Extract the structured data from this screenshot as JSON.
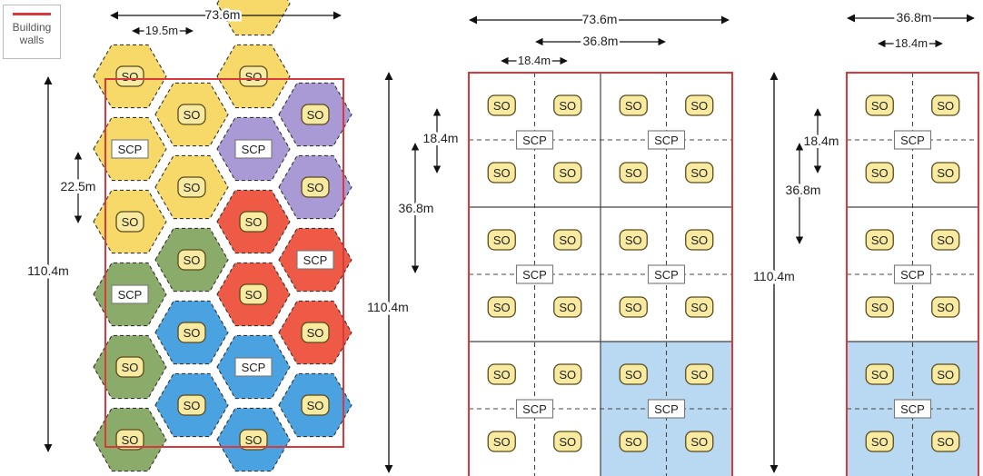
{
  "legend": {
    "label_line1": "Building",
    "label_line2": "walls",
    "wall_color": "#d9383d"
  },
  "labels": {
    "so": "SO",
    "scp": "SCP"
  },
  "colors": {
    "yellow": "#f7d96a",
    "purple": "#a99ad6",
    "red": "#ee5a45",
    "green": "#8bab6a",
    "blue": "#4aa3e0",
    "light_blue": "#b9d9f2",
    "badge_fill": "#f8eaa0",
    "badge_stroke": "#5a4a1a"
  },
  "diagram1": {
    "width_label": "73.6m",
    "spacing_label": "19.5m",
    "cell_label": "22.5m",
    "height_label": "110.4m",
    "right_height_label": "110.4m",
    "hexagons": [
      {
        "col": 0,
        "row": 0,
        "color": "yellow",
        "label": "SO"
      },
      {
        "col": 0,
        "row": 1,
        "color": "yellow",
        "label": "SCP"
      },
      {
        "col": 0,
        "row": 2,
        "color": "yellow",
        "label": "SO"
      },
      {
        "col": 0,
        "row": 3,
        "color": "green",
        "label": "SCP"
      },
      {
        "col": 0,
        "row": 4,
        "color": "green",
        "label": "SO"
      },
      {
        "col": 0,
        "row": 5,
        "color": "green",
        "label": "SO"
      },
      {
        "col": 1,
        "row": 0,
        "color": "yellow",
        "label": "SO"
      },
      {
        "col": 1,
        "row": 1,
        "color": "yellow",
        "label": "SO"
      },
      {
        "col": 1,
        "row": 2,
        "color": "green",
        "label": "SO"
      },
      {
        "col": 1,
        "row": 3,
        "color": "blue",
        "label": "SO"
      },
      {
        "col": 1,
        "row": 4,
        "color": "blue",
        "label": "SO"
      },
      {
        "col": 2,
        "row": -1,
        "color": "yellow",
        "label": ""
      },
      {
        "col": 2,
        "row": 0,
        "color": "yellow",
        "label": "SO"
      },
      {
        "col": 2,
        "row": 1,
        "color": "purple",
        "label": "SCP"
      },
      {
        "col": 2,
        "row": 2,
        "color": "red",
        "label": "SO"
      },
      {
        "col": 2,
        "row": 3,
        "color": "red",
        "label": "SO"
      },
      {
        "col": 2,
        "row": 4,
        "color": "blue",
        "label": "SCP"
      },
      {
        "col": 2,
        "row": 5,
        "color": "blue",
        "label": "SO"
      },
      {
        "col": 3,
        "row": 0,
        "color": "purple",
        "label": "SO"
      },
      {
        "col": 3,
        "row": 1,
        "color": "purple",
        "label": "SO"
      },
      {
        "col": 3,
        "row": 2,
        "color": "red",
        "label": "SCP"
      },
      {
        "col": 3,
        "row": 3,
        "color": "red",
        "label": "SO"
      },
      {
        "col": 3,
        "row": 4,
        "color": "blue",
        "label": "SO"
      }
    ]
  },
  "diagram2": {
    "width_label": "73.6m",
    "half_label": "36.8m",
    "quarter_label": "18.4m",
    "cell_label": "18.4m",
    "block_label": "36.8m",
    "height_label": "110.4m",
    "blocks": [
      {
        "row": 0,
        "col": 0,
        "fill": "white"
      },
      {
        "row": 0,
        "col": 1,
        "fill": "white"
      },
      {
        "row": 1,
        "col": 0,
        "fill": "white"
      },
      {
        "row": 1,
        "col": 1,
        "fill": "white"
      },
      {
        "row": 2,
        "col": 0,
        "fill": "white"
      },
      {
        "row": 2,
        "col": 1,
        "fill": "light_blue"
      }
    ]
  },
  "diagram3": {
    "width_label": "36.8m",
    "quarter_label": "18.4m",
    "cell_label": "18.4m",
    "block_label": "36.8m",
    "blocks": [
      {
        "row": 0,
        "col": 0,
        "fill": "white"
      },
      {
        "row": 1,
        "col": 0,
        "fill": "white"
      },
      {
        "row": 2,
        "col": 0,
        "fill": "light_blue"
      }
    ]
  }
}
